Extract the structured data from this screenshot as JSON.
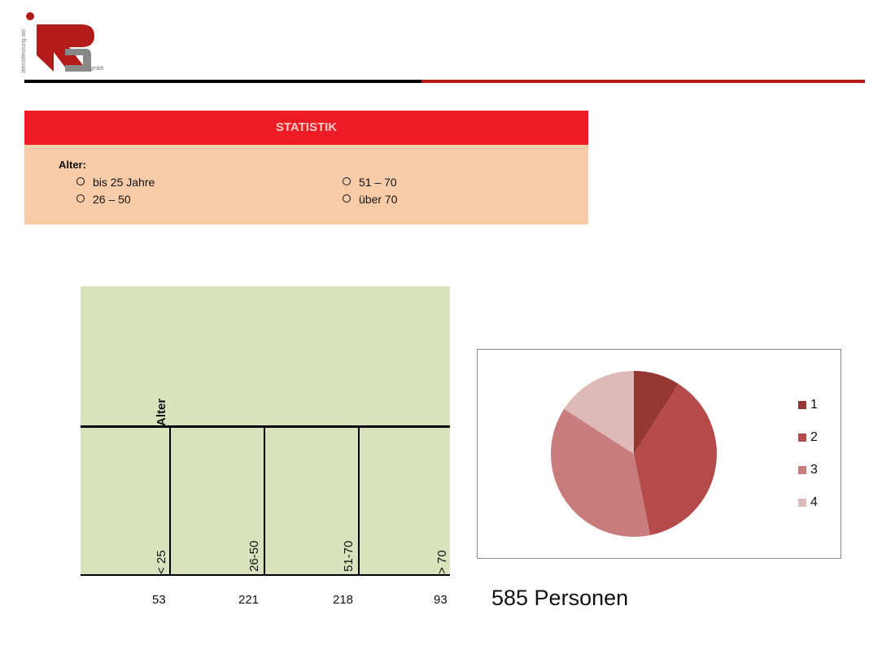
{
  "logo": {
    "side_text": "dienstleistung am",
    "suffix": "gmbh"
  },
  "statistik": {
    "title": "STATISTIK",
    "label": "Alter:",
    "options": [
      "bis 25 Jahre",
      "26 – 50",
      "51 – 70",
      "über 70"
    ]
  },
  "chart_data": [
    {
      "type": "table",
      "title": "Alter",
      "categories": [
        "< 25",
        "26-50",
        "51-70",
        "> 70"
      ],
      "values": [
        53,
        221,
        218,
        93
      ]
    },
    {
      "type": "pie",
      "categories": [
        "1",
        "2",
        "3",
        "4"
      ],
      "values": [
        53,
        221,
        218,
        93
      ],
      "colors": [
        "#953735",
        "#b44b4a",
        "#c97c7c",
        "#dfb8b8"
      ],
      "legend": "right"
    }
  ],
  "summary": {
    "total": "585 Personen"
  }
}
